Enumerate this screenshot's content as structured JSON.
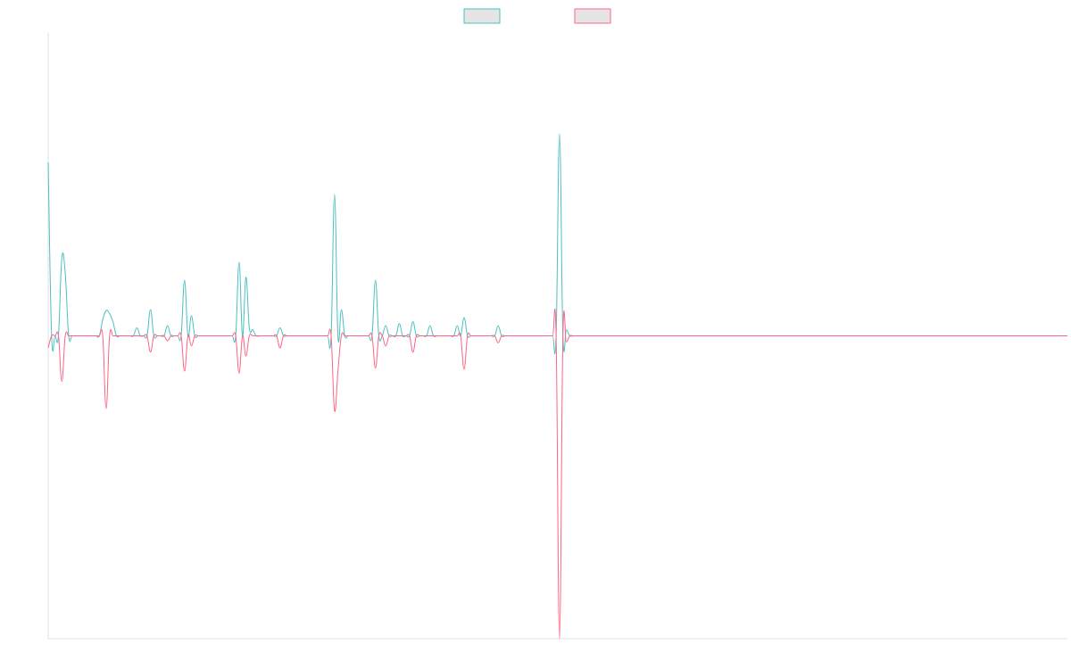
{
  "chart_data": {
    "type": "line",
    "title": "",
    "xlabel": "",
    "ylabel": "",
    "grid": false,
    "legend": "top-center",
    "x": [
      0,
      1,
      2,
      3,
      4,
      5,
      6,
      7,
      8,
      9,
      10,
      11,
      12,
      13,
      14,
      15,
      16,
      17,
      18,
      19,
      20,
      21,
      22,
      23,
      24,
      25,
      26,
      27,
      28,
      29,
      30,
      31,
      32,
      33,
      34,
      35,
      36,
      37,
      38,
      39,
      40,
      41,
      42,
      43,
      44,
      45,
      46,
      47,
      48,
      49,
      50,
      51,
      52,
      53,
      54,
      55,
      56,
      57,
      58,
      59,
      60,
      61,
      62,
      63,
      64,
      65,
      66,
      67,
      68,
      69,
      70,
      71,
      72,
      73,
      74,
      75,
      76,
      77,
      78,
      79,
      80,
      81,
      82,
      83,
      84,
      85,
      86,
      87,
      88,
      89,
      90,
      91,
      92,
      93,
      94,
      95,
      96,
      97,
      98,
      99,
      100,
      101,
      102,
      103,
      104,
      105,
      106,
      107,
      108,
      109,
      110,
      111,
      112,
      113,
      114,
      115,
      116,
      117,
      118,
      119,
      120,
      121,
      122,
      123,
      124,
      125,
      126,
      127,
      128,
      129,
      130,
      131,
      132,
      133,
      134,
      135,
      136,
      137,
      138,
      139,
      140,
      141,
      142,
      143,
      144,
      145,
      146,
      147,
      148,
      149,
      150,
      151,
      152,
      153,
      154,
      155,
      156,
      157,
      158,
      159,
      160,
      161,
      162,
      163,
      164,
      165,
      166,
      167,
      168,
      169,
      170,
      171,
      172,
      173,
      174,
      175,
      176,
      177,
      178,
      179,
      180,
      181,
      182,
      183,
      184,
      185,
      186,
      187,
      188,
      189,
      190,
      191,
      192,
      193,
      194,
      195,
      196,
      197,
      198,
      199,
      200,
      201,
      202,
      203,
      204,
      205,
      206,
      207,
      208,
      209,
      210,
      211,
      212,
      213,
      214,
      215,
      216,
      217,
      218,
      219,
      220,
      221,
      222,
      223,
      224,
      225,
      226,
      227,
      228,
      229,
      230,
      231,
      232,
      233,
      234,
      235,
      236,
      237,
      238,
      239,
      240,
      241,
      242,
      243,
      244,
      245,
      246,
      247,
      248,
      249,
      250,
      251,
      252,
      253,
      254,
      255,
      256,
      257,
      258,
      259,
      260,
      261,
      262,
      263,
      264,
      265,
      266,
      267,
      268,
      269,
      270,
      271,
      272,
      273,
      274,
      275,
      276,
      277,
      278,
      279,
      280,
      281,
      282,
      283,
      284,
      285,
      286,
      287,
      288,
      289,
      290,
      291,
      292,
      293,
      294,
      295,
      296,
      297,
      298,
      299
    ],
    "ylim": [
      -300,
      300
    ],
    "series": [
      {
        "name": "",
        "color": "#4BC0C0",
        "fill": "#E5E5E5",
        "values": [
          172,
          0,
          0,
          0,
          77,
          62,
          0,
          0,
          0,
          0,
          0,
          0,
          0,
          0,
          0,
          0,
          16,
          25,
          22,
          14,
          0,
          0,
          0,
          0,
          0,
          0,
          8,
          0,
          0,
          0,
          26,
          0,
          0,
          0,
          0,
          10,
          0,
          0,
          0,
          0,
          55,
          0,
          20,
          0,
          0,
          0,
          0,
          0,
          0,
          0,
          0,
          0,
          0,
          0,
          0,
          0,
          73,
          0,
          58,
          8,
          6,
          0,
          0,
          0,
          0,
          0,
          0,
          0,
          8,
          0,
          0,
          0,
          0,
          0,
          0,
          0,
          0,
          0,
          0,
          0,
          0,
          0,
          0,
          0,
          140,
          0,
          26,
          0,
          0,
          0,
          0,
          0,
          0,
          0,
          0,
          0,
          55,
          0,
          0,
          10,
          0,
          0,
          0,
          12,
          0,
          0,
          0,
          14,
          0,
          0,
          0,
          0,
          10,
          0,
          0,
          0,
          0,
          0,
          0,
          0,
          10,
          0,
          18,
          0,
          0,
          0,
          0,
          0,
          0,
          0,
          0,
          0,
          10,
          0,
          0,
          0,
          0,
          0,
          0,
          0,
          0,
          0,
          0,
          0,
          0,
          0,
          0,
          0,
          0,
          0,
          200,
          0,
          6,
          0,
          0,
          0,
          0,
          0,
          0,
          0,
          0,
          0,
          0,
          0,
          0,
          0,
          0,
          0,
          0,
          0,
          0,
          0,
          0,
          0,
          0,
          0,
          0,
          0,
          0,
          0,
          0,
          0,
          0,
          0,
          0,
          0,
          0,
          0,
          0,
          0,
          0,
          0,
          0,
          0,
          0,
          0,
          0,
          0,
          0,
          0,
          0,
          0,
          0,
          0,
          0,
          0,
          0,
          0,
          0,
          0,
          0,
          0,
          0,
          0,
          0,
          0,
          0,
          0,
          0,
          0,
          0,
          0,
          0,
          0,
          0,
          0,
          0,
          0,
          0,
          0,
          0,
          0,
          0,
          0,
          0,
          0,
          0,
          0,
          0,
          0,
          0,
          0,
          0,
          0,
          0,
          0,
          0,
          0,
          0,
          0,
          0,
          0,
          0,
          0,
          0,
          0,
          0,
          0,
          0,
          0,
          0,
          0,
          0,
          0,
          0,
          0,
          0,
          0,
          0,
          0,
          0,
          0,
          0,
          0,
          0,
          0,
          0,
          0,
          0,
          0,
          0,
          0,
          0,
          0,
          0,
          0,
          0,
          0,
          0,
          0,
          0,
          0,
          0,
          0,
          0,
          0,
          0,
          0,
          0,
          0
        ]
      },
      {
        "name": "",
        "color": "#FF6384",
        "fill": "#E5E5E5",
        "values": [
          -12,
          0,
          0,
          0,
          -45,
          0,
          0,
          0,
          0,
          0,
          0,
          0,
          0,
          0,
          0,
          0,
          0,
          -72,
          0,
          0,
          0,
          0,
          0,
          0,
          0,
          0,
          0,
          0,
          0,
          0,
          -16,
          0,
          0,
          0,
          0,
          -5,
          0,
          0,
          0,
          0,
          -35,
          0,
          -10,
          0,
          0,
          0,
          0,
          0,
          0,
          0,
          0,
          0,
          0,
          0,
          0,
          0,
          -37,
          0,
          -20,
          0,
          0,
          0,
          0,
          0,
          0,
          0,
          0,
          0,
          -12,
          0,
          0,
          0,
          0,
          0,
          0,
          0,
          0,
          0,
          0,
          0,
          0,
          0,
          0,
          0,
          -74,
          -35,
          0,
          0,
          0,
          0,
          0,
          0,
          0,
          0,
          0,
          0,
          -32,
          0,
          0,
          -10,
          0,
          0,
          0,
          0,
          0,
          0,
          0,
          -16,
          0,
          0,
          0,
          0,
          0,
          0,
          0,
          0,
          0,
          0,
          0,
          0,
          0,
          0,
          -33,
          0,
          0,
          0,
          0,
          0,
          0,
          0,
          0,
          0,
          -7,
          0,
          0,
          0,
          0,
          0,
          0,
          0,
          0,
          0,
          0,
          0,
          0,
          0,
          0,
          0,
          0,
          0,
          -300,
          0,
          -6,
          0,
          0,
          0,
          0,
          0,
          0,
          0,
          0,
          0,
          0,
          0,
          0,
          0,
          0,
          0,
          0,
          0,
          0,
          0,
          0,
          0,
          0,
          0,
          0,
          0,
          0,
          0,
          0,
          0,
          0,
          0,
          0,
          0,
          0,
          0,
          0,
          0,
          0,
          0,
          0,
          0,
          0,
          0,
          0,
          0,
          0,
          0,
          0,
          0,
          0,
          0,
          0,
          0,
          0,
          0,
          0,
          0,
          0,
          0,
          0,
          0,
          0,
          0,
          0,
          0,
          0,
          0,
          0,
          0,
          0,
          0,
          0,
          0,
          0,
          0,
          0,
          0,
          0,
          0,
          0,
          0,
          0,
          0,
          0,
          0,
          0,
          0,
          0,
          0,
          0,
          0,
          0,
          0,
          0,
          0,
          0,
          0,
          0,
          0,
          0,
          0,
          0,
          0,
          0,
          0,
          0,
          0,
          0,
          0,
          0,
          0,
          0,
          0,
          0,
          0,
          0,
          0,
          0,
          0,
          0,
          0,
          0,
          0,
          0,
          0,
          0,
          0,
          0,
          0,
          0,
          0,
          0,
          0,
          0,
          0,
          0,
          0,
          0,
          0,
          0,
          0,
          0,
          0,
          0,
          0,
          0,
          0
        ]
      }
    ]
  }
}
